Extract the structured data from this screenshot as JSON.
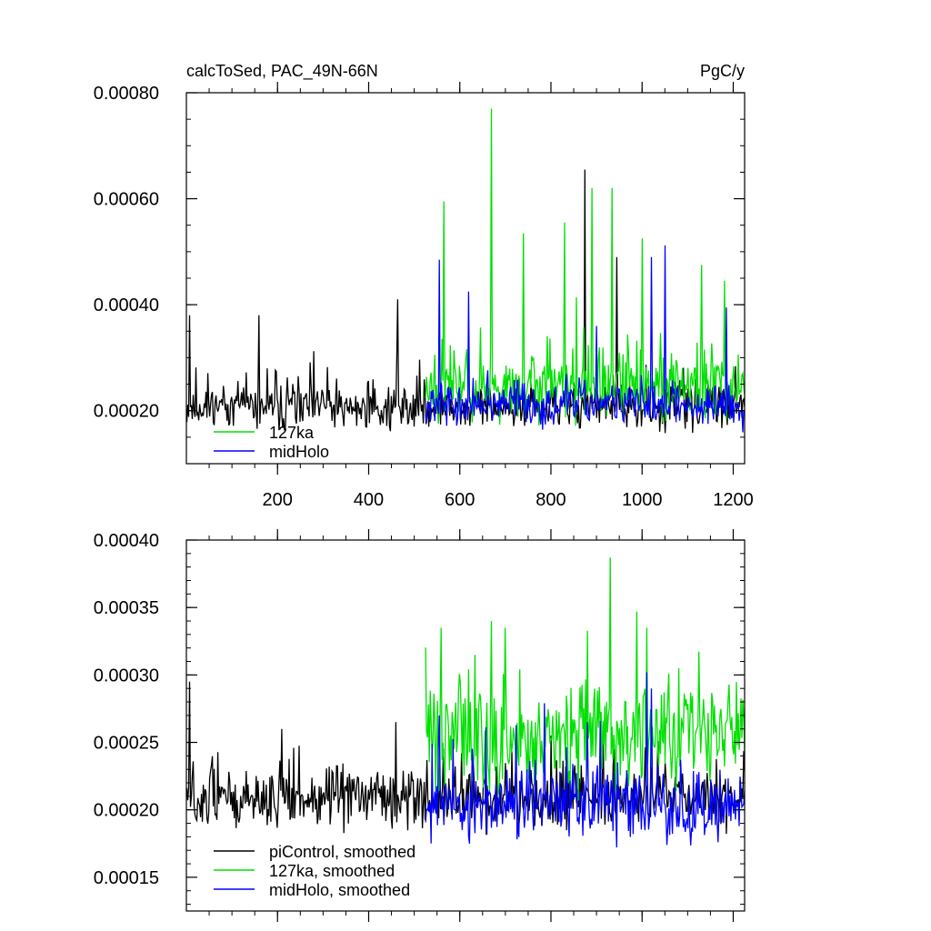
{
  "figure": {
    "title_left": "calcToSed, PAC_49N-66N",
    "title_right": "PgC/y"
  },
  "chart_data": [
    {
      "type": "line",
      "xlim": [
        0,
        1225
      ],
      "ylim": [
        0.0001,
        0.0008
      ],
      "x_ticks": [
        200,
        400,
        600,
        800,
        1000,
        1200
      ],
      "x_tick_labels": [
        "200",
        "400",
        "600",
        "800",
        "1000",
        "1200"
      ],
      "x_minor_step": 50,
      "y_ticks": [
        0.0002,
        0.0004,
        0.0006,
        0.0008
      ],
      "y_tick_labels": [
        "0.00020",
        "0.00040",
        "0.00060",
        "0.00080"
      ],
      "y_minor_step": 5e-05,
      "grid": false,
      "legend_position": "bottom-left",
      "legend": [
        "127ka",
        "midHolo"
      ],
      "series": [
        {
          "name": "piControl",
          "color": "#000000",
          "x_start": 1,
          "x_end": 1225,
          "n": 612,
          "base": 0.000205,
          "noise": 4.5e-05,
          "seed": 11,
          "peaks": [
            [
              8,
              0.00038
            ],
            [
              160,
              0.00038
            ],
            [
              463,
              0.00041
            ],
            [
              875,
              0.000655
            ],
            [
              945,
              0.00049
            ]
          ]
        },
        {
          "name": "127ka",
          "color": "#00e000",
          "x_start": 525,
          "x_end": 1225,
          "n": 350,
          "base": 0.000245,
          "noise": 7e-05,
          "seed": 23,
          "peaks": [
            [
              565,
              0.000595
            ],
            [
              670,
              0.00077
            ],
            [
              740,
              0.000535
            ],
            [
              830,
              0.000555
            ],
            [
              890,
              0.00062
            ],
            [
              935,
              0.00062
            ],
            [
              1000,
              0.000525
            ],
            [
              1130,
              0.000475
            ],
            [
              1180,
              0.000445
            ]
          ]
        },
        {
          "name": "midHolo",
          "color": "#0000ff",
          "x_start": 525,
          "x_end": 1225,
          "n": 350,
          "base": 0.00021,
          "noise": 4e-05,
          "seed": 37,
          "peaks": [
            [
              555,
              0.000485
            ],
            [
              620,
              0.000425
            ],
            [
              900,
              0.00036
            ],
            [
              1020,
              0.00049
            ],
            [
              1050,
              0.000512
            ],
            [
              1185,
              0.000395
            ]
          ]
        }
      ]
    },
    {
      "type": "line",
      "xlim": [
        0,
        1225
      ],
      "ylim": [
        0.000125,
        0.0004
      ],
      "x_ticks": [
        200,
        400,
        600,
        800,
        1000,
        1200
      ],
      "x_tick_labels": [],
      "x_minor_step": 50,
      "y_ticks": [
        0.00015,
        0.0002,
        0.00025,
        0.0003,
        0.00035,
        0.0004
      ],
      "y_tick_labels": [
        "0.00015",
        "0.00020",
        "0.00025",
        "0.00030",
        "0.00035",
        "0.00040"
      ],
      "y_minor_step": 1e-05,
      "grid": false,
      "legend_position": "bottom-left",
      "legend": [
        "piControl, smoothed",
        "127ka, smoothed",
        "midHolo, smoothed"
      ],
      "series": [
        {
          "name": "piControl, smoothed",
          "color": "#000000",
          "x_start": 1,
          "x_end": 1225,
          "n": 612,
          "base": 0.000208,
          "noise": 2.2e-05,
          "seed": 51,
          "peaks": [
            [
              8,
              0.000295
            ],
            [
              210,
              0.00026
            ],
            [
              460,
              0.000265
            ],
            [
              800,
              0.000255
            ],
            [
              1020,
              0.000265
            ]
          ]
        },
        {
          "name": "127ka, smoothed",
          "color": "#00e000",
          "x_start": 525,
          "x_end": 1225,
          "n": 350,
          "base": 0.000255,
          "noise": 4e-05,
          "seed": 63,
          "peaks": [
            [
              560,
              0.000335
            ],
            [
              670,
              0.00034
            ],
            [
              700,
              0.000335
            ],
            [
              930,
              0.000387
            ],
            [
              1010,
              0.000335
            ],
            [
              1080,
              0.000305
            ]
          ]
        },
        {
          "name": "midHolo, smoothed",
          "color": "#0000ff",
          "x_start": 525,
          "x_end": 1225,
          "n": 350,
          "base": 0.000202,
          "noise": 2.8e-05,
          "seed": 77,
          "peaks": [
            [
              555,
              0.00027
            ],
            [
              880,
              0.000265
            ],
            [
              1010,
              0.000302
            ],
            [
              1020,
              0.00029
            ]
          ]
        }
      ]
    }
  ]
}
